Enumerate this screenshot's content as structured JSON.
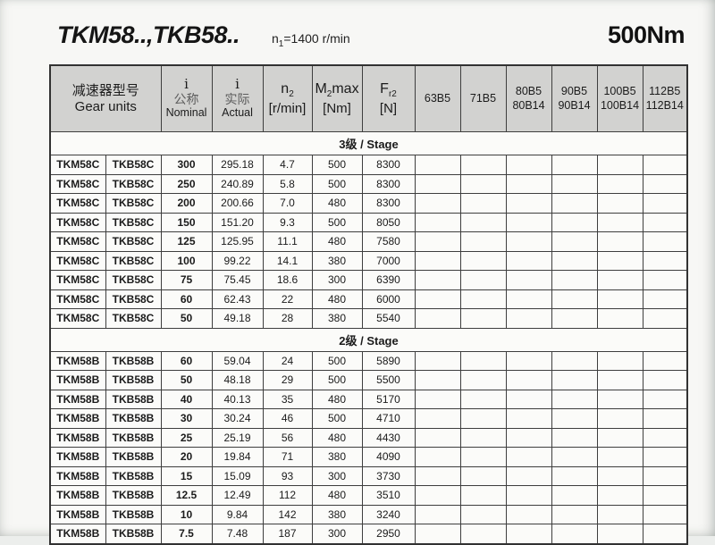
{
  "header": {
    "series_title": "TKM58..,TKB58..",
    "speed_main": "n",
    "speed_sub": "1",
    "speed_rest": "=1400 r/min",
    "torque": "500Nm"
  },
  "table": {
    "columns": {
      "gear_units_zh": "减速器型号",
      "gear_units_en": "Gear units",
      "i_nominal": {
        "symbol": "i",
        "zh": "公称",
        "en": "Nominal"
      },
      "i_actual": {
        "symbol": "i",
        "zh": "实际",
        "en": "Actual"
      },
      "n2": {
        "main": "n",
        "sub": "2",
        "unit": "[r/min]"
      },
      "m2max": {
        "main": "M",
        "sub": "2",
        "suffix": "max",
        "unit": "[Nm]"
      },
      "fr2": {
        "main": "F",
        "sub": "r2",
        "unit": "[N]"
      },
      "motors": [
        {
          "line1": "63B5",
          "line2": ""
        },
        {
          "line1": "71B5",
          "line2": ""
        },
        {
          "line1": "80B5",
          "line2": "80B14"
        },
        {
          "line1": "90B5",
          "line2": "90B14"
        },
        {
          "line1": "100B5",
          "line2": "100B14"
        },
        {
          "line1": "112B5",
          "line2": "112B14"
        }
      ]
    },
    "sections": [
      {
        "stage_label": "3级 / Stage",
        "rows": [
          [
            "TKM58C",
            "TKB58C",
            "300",
            "295.18",
            "4.7",
            "500",
            "8300"
          ],
          [
            "TKM58C",
            "TKB58C",
            "250",
            "240.89",
            "5.8",
            "500",
            "8300"
          ],
          [
            "TKM58C",
            "TKB58C",
            "200",
            "200.66",
            "7.0",
            "480",
            "8300"
          ],
          [
            "TKM58C",
            "TKB58C",
            "150",
            "151.20",
            "9.3",
            "500",
            "8050"
          ],
          [
            "TKM58C",
            "TKB58C",
            "125",
            "125.95",
            "11.1",
            "480",
            "7580"
          ],
          [
            "TKM58C",
            "TKB58C",
            "100",
            "99.22",
            "14.1",
            "380",
            "7000"
          ],
          [
            "TKM58C",
            "TKB58C",
            "75",
            "75.45",
            "18.6",
            "300",
            "6390"
          ],
          [
            "TKM58C",
            "TKB58C",
            "60",
            "62.43",
            "22",
            "480",
            "6000"
          ],
          [
            "TKM58C",
            "TKB58C",
            "50",
            "49.18",
            "28",
            "380",
            "5540"
          ]
        ]
      },
      {
        "stage_label": "2级 / Stage",
        "rows": [
          [
            "TKM58B",
            "TKB58B",
            "60",
            "59.04",
            "24",
            "500",
            "5890"
          ],
          [
            "TKM58B",
            "TKB58B",
            "50",
            "48.18",
            "29",
            "500",
            "5500"
          ],
          [
            "TKM58B",
            "TKB58B",
            "40",
            "40.13",
            "35",
            "480",
            "5170"
          ],
          [
            "TKM58B",
            "TKB58B",
            "30",
            "30.24",
            "46",
            "500",
            "4710"
          ],
          [
            "TKM58B",
            "TKB58B",
            "25",
            "25.19",
            "56",
            "480",
            "4430"
          ],
          [
            "TKM58B",
            "TKB58B",
            "20",
            "19.84",
            "71",
            "380",
            "4090"
          ],
          [
            "TKM58B",
            "TKB58B",
            "15",
            "15.09",
            "93",
            "300",
            "3730"
          ],
          [
            "TKM58B",
            "TKB58B",
            "12.5",
            "12.49",
            "112",
            "480",
            "3510"
          ],
          [
            "TKM58B",
            "TKB58B",
            "10",
            "9.84",
            "142",
            "380",
            "3240"
          ],
          [
            "TKM58B",
            "TKB58B",
            "7.5",
            "7.48",
            "187",
            "300",
            "2950"
          ]
        ]
      }
    ]
  }
}
